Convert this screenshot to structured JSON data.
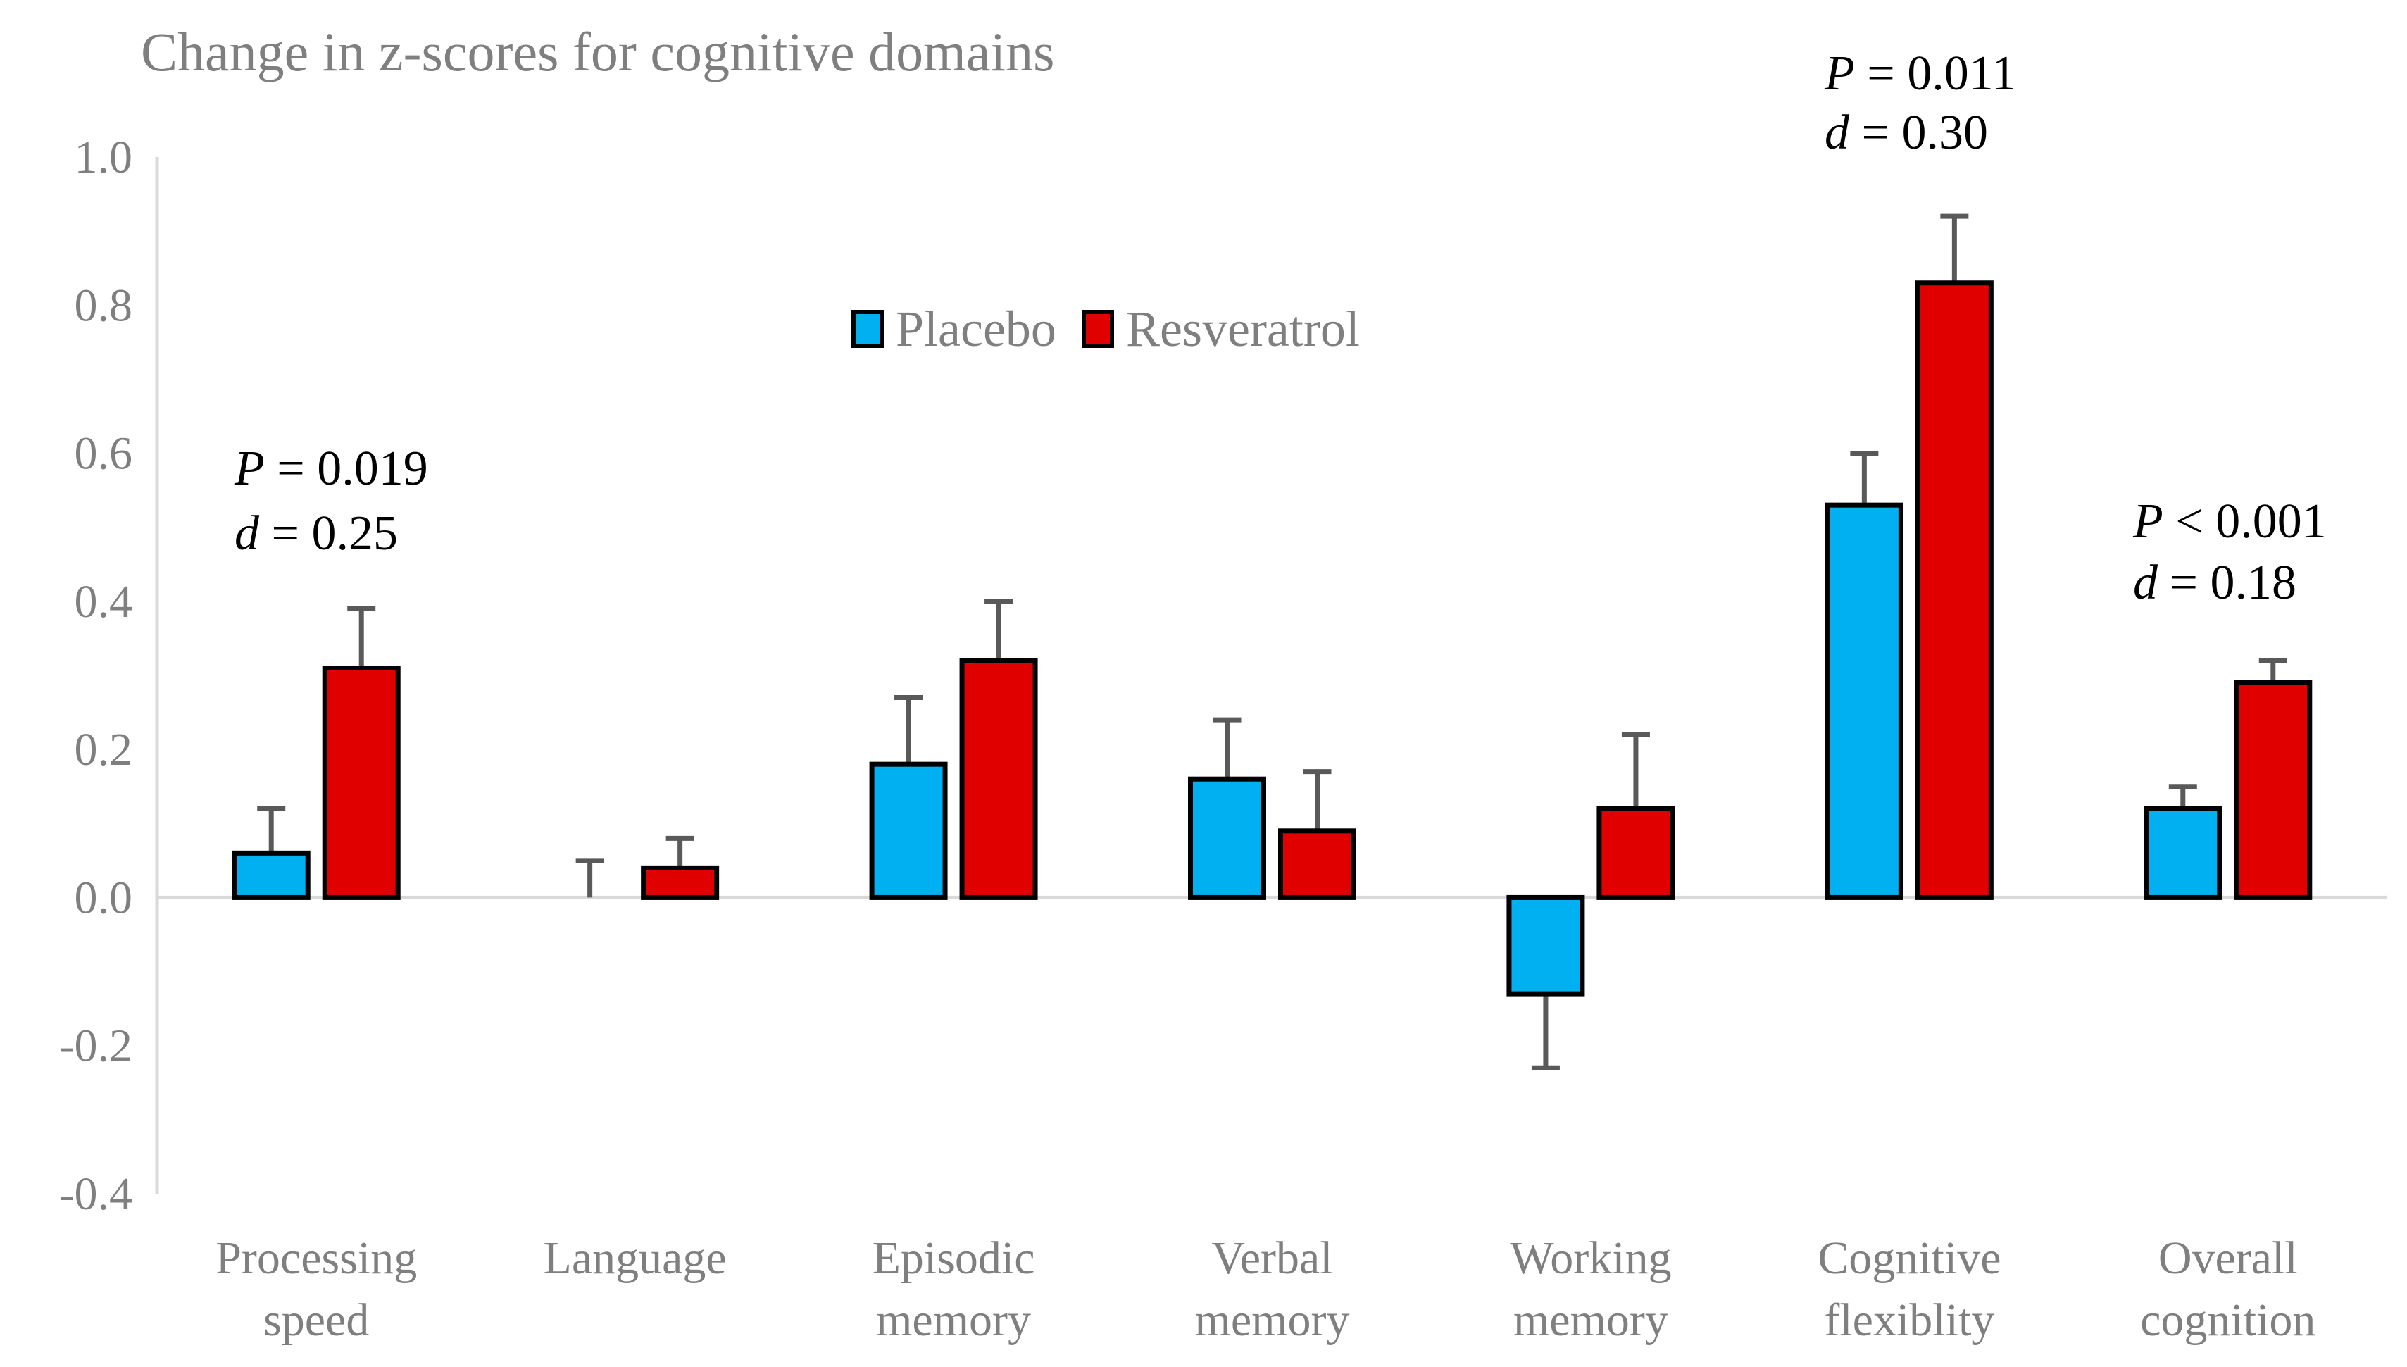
{
  "chart_data": {
    "type": "bar",
    "title": "Change in z-scores for cognitive domains",
    "xlabel": "",
    "ylabel": "",
    "ylim": [
      -0.4,
      1.0
    ],
    "yticks": [
      "1.0",
      "0.8",
      "0.6",
      "0.4",
      "0.2",
      "0.0",
      "-0.2",
      "-0.4"
    ],
    "ytick_values": [
      1.0,
      0.8,
      0.6,
      0.4,
      0.2,
      0.0,
      -0.2,
      -0.4
    ],
    "grid": false,
    "legend_placement": "top-center",
    "categories": [
      [
        "Processing",
        "speed"
      ],
      [
        "Language"
      ],
      [
        "Episodic",
        "memory"
      ],
      [
        "Verbal",
        "memory"
      ],
      [
        "Working",
        "memory"
      ],
      [
        "Cognitive",
        "flexiblity"
      ],
      [
        "Overall",
        "cognition"
      ]
    ],
    "series": [
      {
        "name": "Placebo",
        "color": "#00b0f0",
        "values": [
          0.06,
          0.0,
          0.18,
          0.16,
          -0.13,
          0.53,
          0.12
        ],
        "error_tips": [
          0.12,
          0.05,
          0.27,
          0.24,
          -0.23,
          0.6,
          0.15
        ]
      },
      {
        "name": "Resveratrol",
        "color": "#e00000",
        "values": [
          0.31,
          0.04,
          0.32,
          0.09,
          0.12,
          0.83,
          0.29
        ],
        "error_tips": [
          0.39,
          0.08,
          0.4,
          0.17,
          0.22,
          0.92,
          0.32
        ]
      }
    ],
    "annotations": [
      {
        "category": 0,
        "p_label": "P",
        "p_text": " = 0.019",
        "d_label": "d",
        "d_text": " = 0.25"
      },
      {
        "category": 5,
        "p_label": "P",
        "p_text": " = 0.011",
        "d_label": "d",
        "d_text": " = 0.30"
      },
      {
        "category": 6,
        "p_label": "P",
        "p_text": " < 0.001",
        "d_label": "d",
        "d_text": " = 0.18"
      }
    ]
  }
}
